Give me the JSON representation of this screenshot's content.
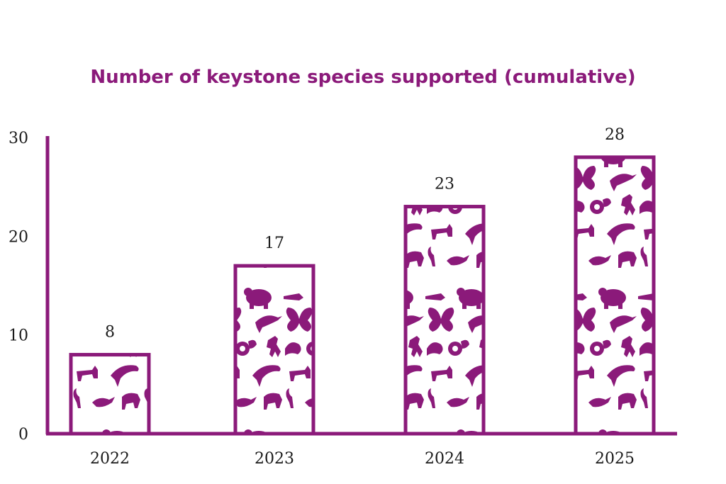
{
  "colors": {
    "accent": "#8b1a7a",
    "text": "#1a1a1a",
    "background": "#ffffff"
  },
  "chart_data": {
    "type": "bar",
    "title": "Number of keystone species supported (cumulative)",
    "categories": [
      "2022",
      "2023",
      "2024",
      "2025"
    ],
    "values": [
      8,
      17,
      23,
      28
    ],
    "data_labels": [
      "8",
      "17",
      "23",
      "28"
    ],
    "ylim": [
      0,
      30
    ],
    "yticks": [
      "0",
      "10",
      "20",
      "30"
    ],
    "xlabel": "",
    "ylabel": "",
    "grid": false,
    "bar_fill": "pattern of animal silhouettes",
    "pattern_icons": [
      "butterfly-icon",
      "bird-icon",
      "bear-icon",
      "dolphin-icon",
      "horse-icon",
      "wolf-icon",
      "bison-icon",
      "ibex-icon",
      "snail-icon",
      "rooster-icon"
    ]
  }
}
